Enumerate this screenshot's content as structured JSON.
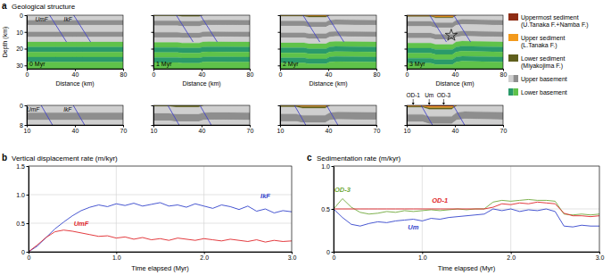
{
  "geology": {
    "panel": "a",
    "title": "Geological structure",
    "x_label": "Distance (km)",
    "y_label": "Depth (km)",
    "overview": {
      "xlim": [
        0,
        80
      ],
      "ylim": [
        0,
        32
      ],
      "xticks": [
        0,
        40,
        80
      ],
      "yticks": [
        0,
        10,
        20,
        30
      ]
    },
    "zoom": {
      "xlim": [
        10,
        70
      ],
      "ylim": [
        0,
        8
      ],
      "xticks": [
        10,
        40,
        70
      ],
      "yticks": [
        0,
        8
      ]
    },
    "legend": [
      {
        "label": [
          "Uppermost sediment",
          "(U.Tanaka F.+Namba F.)"
        ],
        "colors": [
          "#8e2c14"
        ]
      },
      {
        "label": [
          "Upper sediment",
          "(L.Tanaka F.)"
        ],
        "colors": [
          "#f39a1c"
        ]
      },
      {
        "label": [
          "Lower sediment",
          "(Miyakojima F.)"
        ],
        "colors": [
          "#5f5f1d"
        ]
      },
      {
        "label": [
          "Upper basement"
        ],
        "colors": [
          "#cfcfcf",
          "#8e8e8e"
        ]
      },
      {
        "label": [
          "Lower basement"
        ],
        "colors": [
          "#2a9a6a",
          "#5fc24a"
        ]
      }
    ],
    "basement_layers": {
      "depths": [
        0,
        3,
        6,
        10,
        13,
        16,
        19,
        22,
        25,
        28,
        34
      ],
      "legend_index": [
        3,
        3,
        3,
        3,
        3,
        4,
        4,
        4,
        4,
        4
      ],
      "color_index": [
        0,
        1,
        0,
        1,
        0,
        1,
        0,
        1,
        0,
        1
      ]
    },
    "faults": [
      {
        "name": "UmF",
        "x": [
          19,
          33
        ],
        "depth": [
          0,
          16
        ]
      },
      {
        "name": "IkF",
        "x": [
          39,
          53
        ],
        "depth": [
          0,
          16
        ]
      }
    ],
    "time_panels": [
      {
        "label": "0 Myr",
        "offset": {
          "x": [
            0,
            20,
            24,
            38,
            41,
            46,
            80
          ],
          "dz": [
            0,
            0,
            0,
            0,
            0,
            0,
            0
          ]
        },
        "sediments": []
      },
      {
        "label": "1 Myr",
        "offset": {
          "x": [
            0,
            20,
            24,
            38,
            41,
            46,
            80
          ],
          "dz": [
            0.3,
            0.3,
            0.6,
            0.6,
            0,
            -0.1,
            0
          ]
        },
        "sediments": [
          {
            "legend_index": 2,
            "x": [
              0,
              20,
              24,
              38,
              41
            ],
            "top": [
              0,
              0,
              0,
              0,
              0
            ],
            "bottom": [
              0.3,
              0.3,
              0.6,
              0.6,
              0
            ]
          }
        ]
      },
      {
        "label": "2 Myr",
        "offset": {
          "x": [
            0,
            20,
            24,
            38,
            41,
            46,
            80
          ],
          "dz": [
            0.5,
            0.5,
            1.1,
            1.1,
            0,
            -0.3,
            0
          ]
        },
        "sediments": [
          {
            "legend_index": 1,
            "x": [
              0,
              20,
              24,
              38,
              41
            ],
            "top": [
              0,
              0,
              0,
              0,
              0
            ],
            "bottom": [
              0.2,
              0.2,
              0.5,
              0.5,
              0
            ]
          },
          {
            "legend_index": 2,
            "x": [
              0,
              20,
              24,
              38,
              41
            ],
            "top": [
              0.2,
              0.2,
              0.5,
              0.5,
              0
            ],
            "bottom": [
              0.5,
              0.5,
              1.1,
              1.1,
              0
            ]
          }
        ]
      },
      {
        "label": "3 Myr",
        "offset": {
          "x": [
            0,
            20,
            24,
            38,
            41,
            46,
            80
          ],
          "dz": [
            0.7,
            0.7,
            1.5,
            1.5,
            0,
            -0.5,
            0
          ]
        },
        "sediments": [
          {
            "legend_index": 0,
            "x": [
              0,
              20,
              24,
              38,
              41
            ],
            "top": [
              0,
              0,
              0,
              0,
              0
            ],
            "bottom": [
              0.2,
              0.2,
              0.45,
              0.45,
              0
            ]
          },
          {
            "legend_index": 1,
            "x": [
              0,
              20,
              24,
              38,
              41
            ],
            "top": [
              0.2,
              0.2,
              0.45,
              0.45,
              0
            ],
            "bottom": [
              0.45,
              0.45,
              1,
              1,
              0
            ]
          },
          {
            "legend_index": 2,
            "x": [
              0,
              20,
              24,
              38,
              41
            ],
            "top": [
              0.45,
              0.45,
              1,
              1,
              0
            ],
            "bottom": [
              0.7,
              0.7,
              1.5,
              1.5,
              0
            ]
          }
        ],
        "star": {
          "x": 37,
          "depth": 12
        },
        "wells": [
          {
            "label": "OD-1",
            "x": 14
          },
          {
            "label": "Um",
            "x": 24
          },
          {
            "label": "OD-3",
            "x": 33
          }
        ]
      }
    ]
  },
  "chart_data": [
    {
      "type": "line",
      "panel": "b",
      "title": "Vertical displacement rate (m/kyr)",
      "x_label": "Time elapsed (Myr)",
      "x": [
        0,
        0.1,
        0.2,
        0.3,
        0.4,
        0.5,
        0.6,
        0.7,
        0.8,
        0.9,
        1.0,
        1.1,
        1.2,
        1.3,
        1.4,
        1.5,
        1.6,
        1.7,
        1.8,
        1.9,
        2.0,
        2.1,
        2.2,
        2.3,
        2.4,
        2.5,
        2.6,
        2.7,
        2.8,
        2.9,
        3.0
      ],
      "xlim": [
        0,
        3
      ],
      "xticks": [
        0,
        {
          "value": 1,
          "label": "1.0"
        },
        {
          "value": 2,
          "label": "2.0"
        },
        {
          "value": 3,
          "label": "3.0"
        }
      ],
      "ylim": [
        0,
        1.5
      ],
      "yticks": [
        0,
        0.5,
        {
          "value": 1,
          "label": "1.0"
        },
        1.5
      ],
      "grid": true,
      "series": [
        {
          "name": "IkF",
          "color": "#3344cc",
          "values": [
            0,
            0.1,
            0.25,
            0.4,
            0.52,
            0.63,
            0.72,
            0.78,
            0.82,
            0.79,
            0.84,
            0.81,
            0.85,
            0.8,
            0.83,
            0.86,
            0.8,
            0.82,
            0.78,
            0.84,
            0.8,
            0.76,
            0.82,
            0.79,
            0.74,
            0.8,
            0.71,
            0.75,
            0.68,
            0.72,
            0.7
          ]
        },
        {
          "name": "UmF",
          "color": "#e0262a",
          "values": [
            0,
            0.12,
            0.25,
            0.35,
            0.38,
            0.36,
            0.33,
            0.3,
            0.27,
            0.28,
            0.24,
            0.26,
            0.22,
            0.25,
            0.21,
            0.23,
            0.2,
            0.24,
            0.22,
            0.2,
            0.23,
            0.21,
            0.19,
            0.22,
            0.2,
            0.18,
            0.21,
            0.17,
            0.2,
            0.18,
            0.19
          ]
        }
      ]
    },
    {
      "type": "line",
      "panel": "c",
      "title": "Sedimentation rate (m/kyr)",
      "x_label": "Time elapsed (Myr)",
      "x": [
        0,
        0.1,
        0.2,
        0.3,
        0.4,
        0.5,
        0.6,
        0.7,
        0.8,
        0.9,
        1.0,
        1.1,
        1.2,
        1.3,
        1.4,
        1.5,
        1.6,
        1.7,
        1.8,
        1.9,
        2.0,
        2.1,
        2.2,
        2.3,
        2.4,
        2.5,
        2.6,
        2.7,
        2.8,
        2.9,
        3.0
      ],
      "xlim": [
        0,
        3
      ],
      "xticks": [
        0,
        {
          "value": 1,
          "label": "1.0"
        },
        {
          "value": 2,
          "label": "2.0"
        },
        {
          "value": 3,
          "label": "3.0"
        }
      ],
      "ylim": [
        0,
        1
      ],
      "yticks": [
        0,
        0.5,
        {
          "value": 1,
          "label": "1.0"
        }
      ],
      "grid": true,
      "series": [
        {
          "name": "OD-3",
          "color": "#6fa83a",
          "values": [
            0.5,
            0.62,
            0.52,
            0.46,
            0.44,
            0.45,
            0.47,
            0.46,
            0.48,
            0.47,
            0.48,
            0.49,
            0.48,
            0.49,
            0.5,
            0.49,
            0.5,
            0.5,
            0.58,
            0.6,
            0.59,
            0.6,
            0.61,
            0.6,
            0.6,
            0.59,
            0.44,
            0.43,
            0.44,
            0.43,
            0.44
          ]
        },
        {
          "name": "OD-1",
          "color": "#e0262a",
          "values": [
            0.5,
            0.5,
            0.5,
            0.5,
            0.5,
            0.5,
            0.5,
            0.5,
            0.5,
            0.5,
            0.5,
            0.5,
            0.5,
            0.5,
            0.5,
            0.5,
            0.5,
            0.5,
            0.52,
            0.56,
            0.55,
            0.57,
            0.56,
            0.58,
            0.57,
            0.56,
            0.45,
            0.42,
            0.42,
            0.41,
            0.42
          ]
        },
        {
          "name": "Um",
          "color": "#3344cc",
          "values": [
            0.5,
            0.4,
            0.32,
            0.3,
            0.33,
            0.35,
            0.34,
            0.36,
            0.37,
            0.38,
            0.36,
            0.39,
            0.38,
            0.4,
            0.41,
            0.42,
            0.43,
            0.44,
            0.5,
            0.48,
            0.5,
            0.47,
            0.49,
            0.48,
            0.5,
            0.47,
            0.3,
            0.29,
            0.31,
            0.3,
            0.3
          ]
        }
      ]
    }
  ]
}
